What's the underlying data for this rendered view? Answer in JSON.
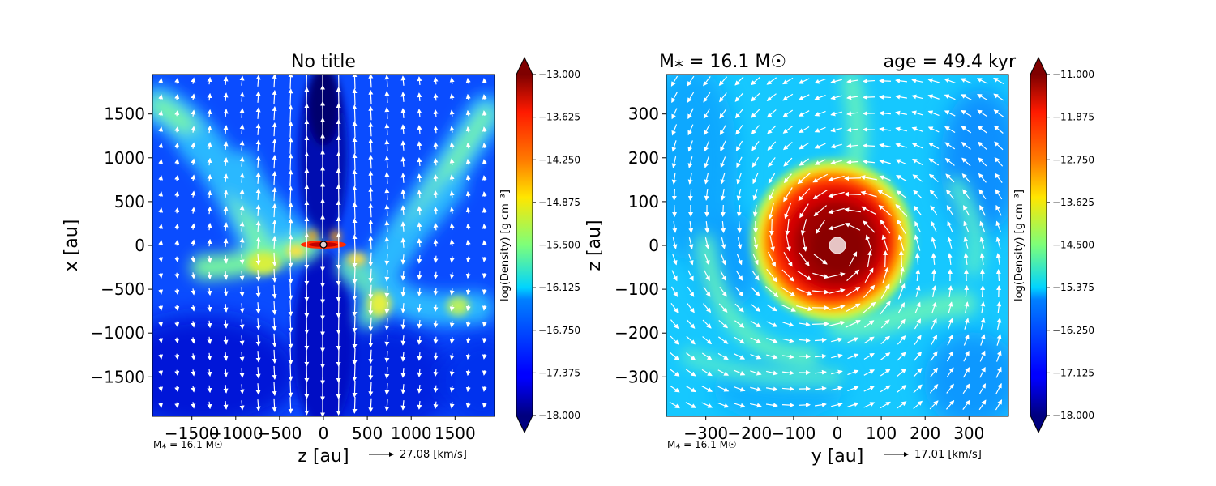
{
  "chart_data": [
    {
      "type": "heatmap",
      "title": "No title",
      "xlabel": "z [au]",
      "ylabel": "x [au]",
      "xlim": [
        -1950,
        1950
      ],
      "ylim": [
        -1950,
        1950
      ],
      "xticks": [
        -1500,
        -1000,
        -500,
        0,
        500,
        1000,
        1500
      ],
      "xtick_labels": [
        "−1500",
        "−1000",
        "−500",
        "0",
        "500",
        "1000",
        "1500"
      ],
      "yticks": [
        1500,
        1000,
        500,
        0,
        -500,
        -1000,
        -1500
      ],
      "ytick_labels": [
        "1500",
        "1000",
        "500",
        "0",
        "−500",
        "−1000",
        "−1500"
      ],
      "colorbar": {
        "label": "log(Density) [g cm⁻³]",
        "min": -18.0,
        "max": -13.0,
        "ticks": [
          -13.0,
          -13.625,
          -14.25,
          -14.875,
          -15.5,
          -16.125,
          -16.75,
          -17.375,
          -18.0
        ],
        "tick_labels": [
          "−13.000",
          "−13.625",
          "−14.250",
          "−14.875",
          "−15.500",
          "−16.125",
          "−16.750",
          "−17.375",
          "−18.000"
        ],
        "colormap": "jet"
      },
      "mass_label": "M⁎ = 16.1 M☉",
      "velocity_key": "27.08 [km/s]",
      "grid": false
    },
    {
      "type": "heatmap",
      "title_left": "M⁎ = 16.1 M☉",
      "title_right": "age = 49.4 kyr",
      "xlabel": "y [au]",
      "ylabel": "z [au]",
      "xlim": [
        -390,
        390
      ],
      "ylim": [
        -390,
        390
      ],
      "xticks": [
        -300,
        -200,
        -100,
        0,
        100,
        200,
        300
      ],
      "xtick_labels": [
        "−300",
        "−200",
        "−100",
        "0",
        "100",
        "200",
        "300"
      ],
      "yticks": [
        300,
        200,
        100,
        0,
        -100,
        -200,
        -300
      ],
      "ytick_labels": [
        "300",
        "200",
        "100",
        "0",
        "−100",
        "−200",
        "−300"
      ],
      "colorbar": {
        "label": "log(Density) [g cm⁻³]",
        "min": -18.0,
        "max": -11.0,
        "ticks": [
          -11.0,
          -11.875,
          -12.75,
          -13.625,
          -14.5,
          -15.375,
          -16.25,
          -17.125,
          -18.0
        ],
        "tick_labels": [
          "−11.000",
          "−11.875",
          "−12.750",
          "−13.625",
          "−14.500",
          "−15.375",
          "−16.250",
          "−17.125",
          "−18.000"
        ],
        "colormap": "jet"
      },
      "mass_label": "M⁎ = 16.1 M☉",
      "velocity_key": "17.01 [km/s]",
      "grid": false
    }
  ]
}
